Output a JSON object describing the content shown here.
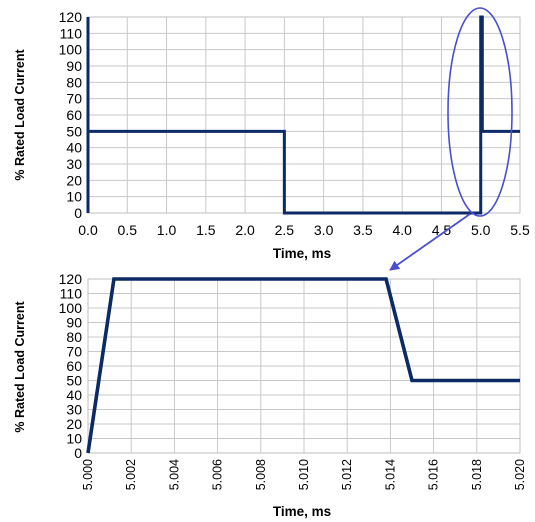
{
  "colors": {
    "series": "#0b2a66",
    "highlight": "#4a4fd0",
    "grid": "#c8c8c8"
  },
  "chart_data": [
    {
      "type": "line",
      "title": "",
      "xlabel": "Time, ms",
      "ylabel": "% Rated Load Current",
      "xlim": [
        0,
        5.5
      ],
      "ylim": [
        0,
        120
      ],
      "xticks": [
        0,
        0.5,
        1.0,
        1.5,
        2.0,
        2.5,
        3.0,
        3.5,
        4.0,
        4.5,
        5.0,
        5.5
      ],
      "xtick_labels": [
        "0.0",
        "0.5",
        "1.0",
        "1.5",
        "2.0",
        "2.5",
        "3.0",
        "3.5",
        "4.0",
        "4.5",
        "5.0",
        "5.5"
      ],
      "yticks": [
        0,
        10,
        20,
        30,
        40,
        50,
        60,
        70,
        80,
        90,
        100,
        110,
        120
      ],
      "grid": true,
      "series": [
        {
          "x": [
            0,
            0,
            0,
            2.5,
            2.5,
            4.98,
            5.0,
            5.0,
            5.02,
            5.02,
            5.5
          ],
          "y": [
            0,
            120,
            50,
            50,
            0,
            0,
            0,
            120,
            120,
            50,
            50
          ]
        }
      ],
      "annotation": "ellipse highlighting the region near 5.0 ms, with an arrow pointing to the zoomed chart below"
    },
    {
      "type": "line",
      "title": "",
      "xlabel": "Time, ms",
      "ylabel": "% Rated Load Current",
      "xlim": [
        5.0,
        5.02
      ],
      "ylim": [
        0,
        120
      ],
      "xticks": [
        5.0,
        5.002,
        5.004,
        5.006,
        5.008,
        5.01,
        5.012,
        5.014,
        5.016,
        5.018,
        5.02
      ],
      "xtick_labels": [
        "5.000",
        "5.002",
        "5.004",
        "5.006",
        "5.008",
        "5.010",
        "5.012",
        "5.014",
        "5.016",
        "5.018",
        "5.020"
      ],
      "yticks": [
        0,
        10,
        20,
        30,
        40,
        50,
        60,
        70,
        80,
        90,
        100,
        110,
        120
      ],
      "grid": true,
      "series": [
        {
          "x": [
            5.0,
            5.0012,
            5.0138,
            5.015,
            5.02
          ],
          "y": [
            0,
            120,
            120,
            50,
            50
          ]
        }
      ]
    }
  ]
}
